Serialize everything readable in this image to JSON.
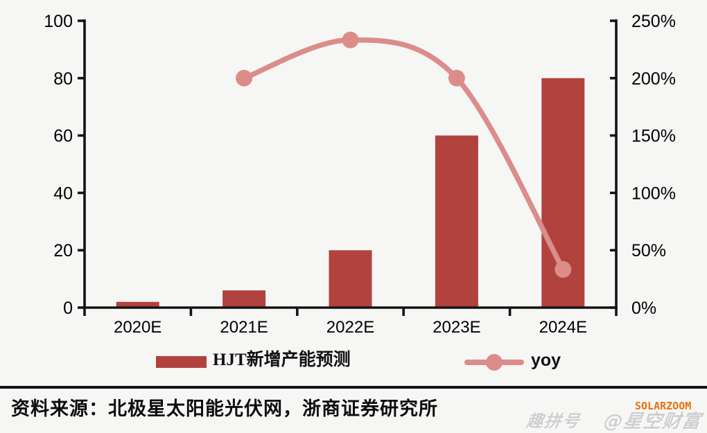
{
  "chart_data": {
    "type": "bar",
    "combo": "bar+line",
    "categories": [
      "2020E",
      "2021E",
      "2022E",
      "2023E",
      "2024E"
    ],
    "series": [
      {
        "name": "HJT新增产能预测",
        "type": "bar",
        "axis": "left",
        "values": [
          2,
          6,
          20,
          60,
          80
        ]
      },
      {
        "name": "yoy",
        "type": "line",
        "axis": "right",
        "unit": "%",
        "values": [
          null,
          200,
          233.3,
          200,
          33.3
        ]
      }
    ],
    "title": "",
    "xlabel": "",
    "ylabel": "",
    "left_axis": {
      "min": 0,
      "max": 100,
      "ticks": [
        0,
        20,
        40,
        60,
        80,
        100
      ],
      "labels": [
        "0",
        "20",
        "40",
        "60",
        "80",
        "100"
      ]
    },
    "right_axis": {
      "min": 0,
      "max": 250,
      "ticks": [
        0,
        50,
        100,
        150,
        200,
        250
      ],
      "labels": [
        "0%",
        "50%",
        "100%",
        "150%",
        "200%",
        "250%"
      ]
    },
    "grid": false,
    "legend_position": "bottom"
  },
  "legend": {
    "bar_label": "HJT新增产能预测",
    "line_label": "yoy"
  },
  "footer": {
    "source": "资料来源：北极星太阳能光伏网，浙商证券研究所"
  },
  "watermarks": {
    "solarzoom": "SOLARZOOM",
    "platform": "趣拼号",
    "account": "@星空财富"
  },
  "colors": {
    "bar": "#b2423e",
    "line": "#db8d89",
    "axis": "#141414",
    "text": "#000000",
    "background": "#f6f6f5",
    "separator": "#141414",
    "solarzoom": "#e8720d",
    "watermark": "#cfcfcf"
  }
}
